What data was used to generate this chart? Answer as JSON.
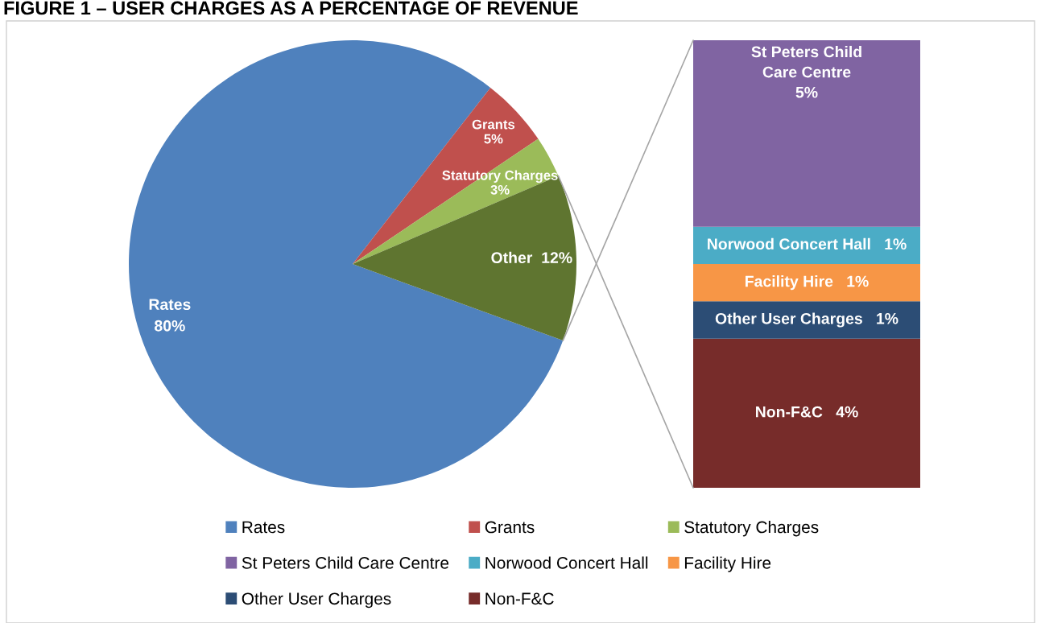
{
  "chart_data": [
    {
      "type": "pie",
      "title": "FIGURE 1 – USER CHARGES AS A PERCENTAGE OF REVENUE",
      "categories": [
        "Rates",
        "Grants",
        "Statutory Charges",
        "Other"
      ],
      "values": [
        80,
        5,
        3,
        12
      ],
      "colors": [
        "#4f81bd",
        "#c0504d",
        "#9bbb59",
        "#5f7530"
      ],
      "value_labels": [
        "80%",
        "5%",
        "3%",
        "12%"
      ],
      "legend": "bottom"
    },
    {
      "type": "bar",
      "stacked": true,
      "categories": [
        null
      ],
      "legend": "bottom",
      "series": [
        {
          "name": "Non-F&C",
          "color": "#772c2a",
          "values": [
            4
          ],
          "value_labels": [
            "4%"
          ]
        },
        {
          "name": "Other User Charges",
          "color": "#2c4d75",
          "values": [
            1
          ],
          "value_labels": [
            "1%"
          ]
        },
        {
          "name": "Facility Hire",
          "color": "#f79646",
          "values": [
            1
          ],
          "value_labels": [
            "1%"
          ]
        },
        {
          "name": "Norwood Concert Hall",
          "color": "#4bacc6",
          "values": [
            1
          ],
          "value_labels": [
            "1%"
          ]
        },
        {
          "name": "St Peters Child Care Centre",
          "color": "#8064a2",
          "values": [
            5
          ],
          "value_labels": [
            "5%"
          ]
        }
      ]
    }
  ]
}
